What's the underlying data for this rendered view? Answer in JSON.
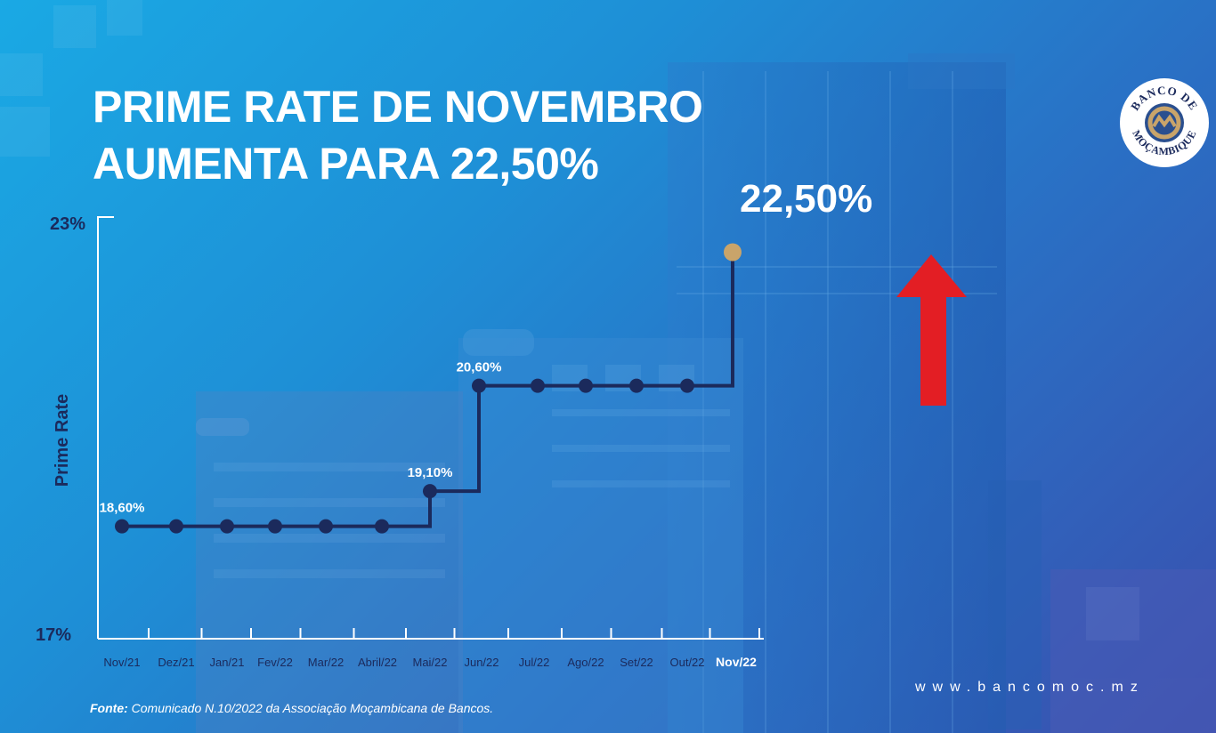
{
  "title": {
    "line1": "PRIME RATE DE NOVEMBRO",
    "line2": "AUMENTA PARA 22,50%"
  },
  "chart_data": {
    "type": "line",
    "step": true,
    "categories": [
      "Nov/21",
      "Dez/21",
      "Jan/21",
      "Fev/22",
      "Mar/22",
      "Abril/22",
      "Mai/22",
      "Jun/22",
      "Jul/22",
      "Ago/22",
      "Set/22",
      "Out/22",
      "Nov/22"
    ],
    "values": [
      18.6,
      18.6,
      18.6,
      18.6,
      18.6,
      18.6,
      19.1,
      20.6,
      20.6,
      20.6,
      20.6,
      20.6,
      22.5
    ],
    "data_labels": [
      {
        "index": 0,
        "text": "18,60%"
      },
      {
        "index": 6,
        "text": "19,10%"
      },
      {
        "index": 7,
        "text": "20,60%"
      },
      {
        "index": 12,
        "text": "22,50%"
      }
    ],
    "ylabel": "Prime Rate",
    "ylim": [
      17,
      23
    ],
    "ytick_labels": {
      "min": "17%",
      "max": "23%"
    },
    "highlight_category": "Nov/22",
    "grid": false,
    "colors": {
      "line": "#1b2a5c",
      "marker": "#1b2a5c",
      "highlight_marker": "#c9a46a",
      "axis": "#ffffff",
      "ylabel": "#1b2a5c",
      "arrow": "#e31e24"
    }
  },
  "footer": {
    "source_label": "Fonte:",
    "source_text": " Comunicado N.10/2022 da Associação Moçambicana de Bancos.",
    "website": "www.bancomoc.mz"
  },
  "logo": {
    "text_top": "BANCO DE",
    "text_bottom": "MOÇAMBIQUE"
  }
}
